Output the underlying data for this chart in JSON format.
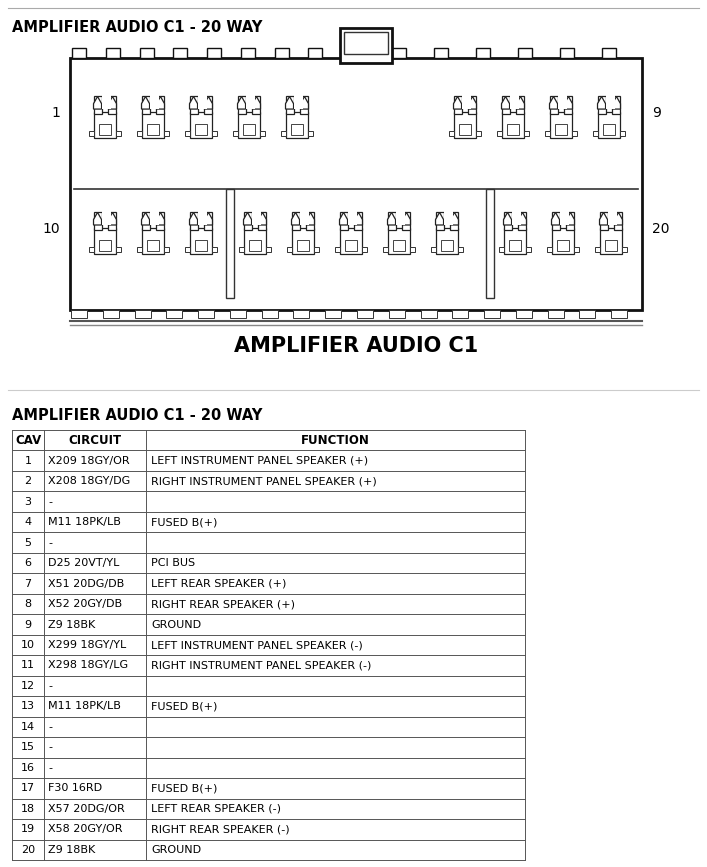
{
  "title_top": "AMPLIFIER AUDIO C1 - 20 WAY",
  "connector_label": "AMPLIFIER AUDIO C1",
  "table_title": "AMPLIFIER AUDIO C1 - 20 WAY",
  "col_headers": [
    "CAV",
    "CIRCUIT",
    "FUNCTION"
  ],
  "rows": [
    [
      "1",
      "X209 18GY/OR",
      "LEFT INSTRUMENT PANEL SPEAKER (+)"
    ],
    [
      "2",
      "X208 18GY/DG",
      "RIGHT INSTRUMENT PANEL SPEAKER (+)"
    ],
    [
      "3",
      "-",
      ""
    ],
    [
      "4",
      "M11 18PK/LB",
      "FUSED B(+)"
    ],
    [
      "5",
      "-",
      ""
    ],
    [
      "6",
      "D25 20VT/YL",
      "PCI BUS"
    ],
    [
      "7",
      "X51 20DG/DB",
      "LEFT REAR SPEAKER (+)"
    ],
    [
      "8",
      "X52 20GY/DB",
      "RIGHT REAR SPEAKER (+)"
    ],
    [
      "9",
      "Z9 18BK",
      "GROUND"
    ],
    [
      "10",
      "X299 18GY/YL",
      "LEFT INSTRUMENT PANEL SPEAKER (-)"
    ],
    [
      "11",
      "X298 18GY/LG",
      "RIGHT INSTRUMENT PANEL SPEAKER (-)"
    ],
    [
      "12",
      "-",
      ""
    ],
    [
      "13",
      "M11 18PK/LB",
      "FUSED B(+)"
    ],
    [
      "14",
      "-",
      ""
    ],
    [
      "15",
      "-",
      ""
    ],
    [
      "16",
      "-",
      ""
    ],
    [
      "17",
      "F30 16RD",
      "FUSED B(+)"
    ],
    [
      "18",
      "X57 20DG/OR",
      "LEFT REAR SPEAKER (-)"
    ],
    [
      "19",
      "X58 20GY/OR",
      "RIGHT REAR SPEAKER (-)"
    ],
    [
      "20",
      "Z9 18BK",
      "GROUND"
    ]
  ],
  "bg_color": "#ffffff",
  "text_color": "#000000",
  "figsize": [
    7.07,
    8.67
  ],
  "dpi": 100
}
